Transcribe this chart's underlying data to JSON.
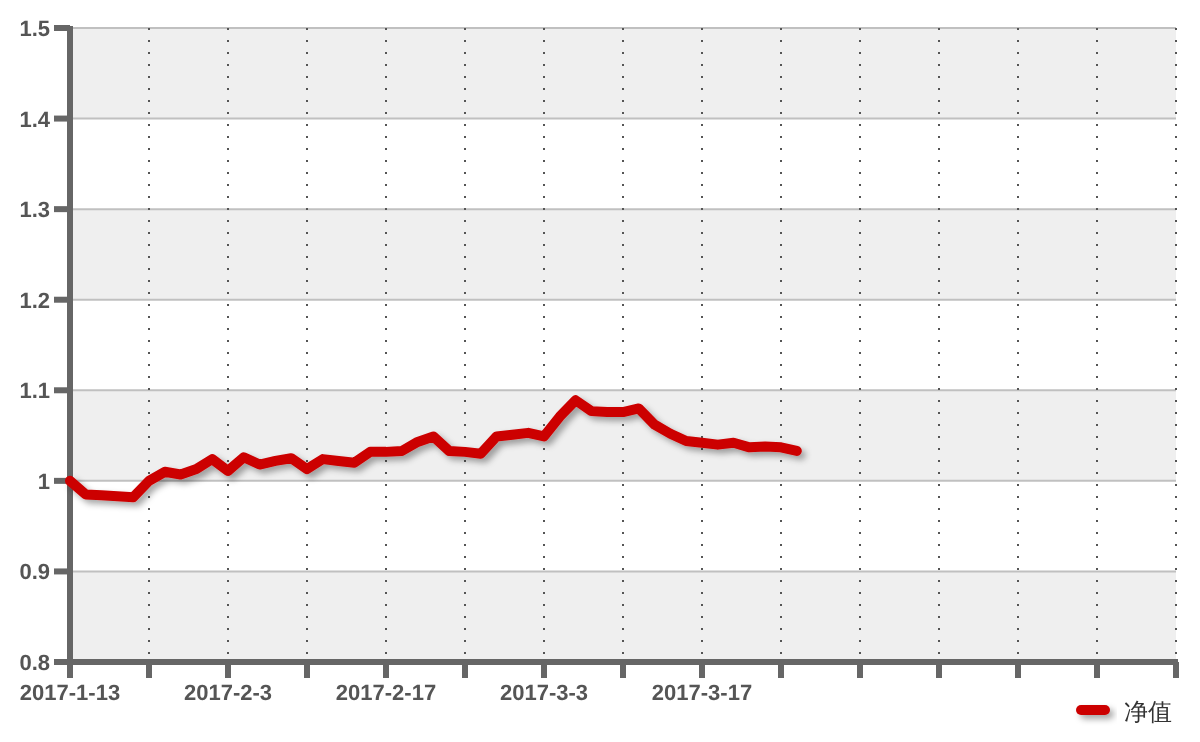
{
  "chart_data": {
    "type": "line",
    "categories": [
      "2017-1-13",
      null,
      null,
      null,
      null,
      null,
      null,
      null,
      null,
      null,
      "2017-2-3",
      null,
      null,
      null,
      null,
      null,
      null,
      null,
      null,
      null,
      "2017-2-17",
      null,
      null,
      null,
      null,
      null,
      null,
      null,
      null,
      null,
      "2017-3-3",
      null,
      null,
      null,
      null,
      null,
      null,
      null,
      null,
      null,
      "2017-3-17",
      null,
      null,
      null,
      null,
      null,
      null,
      null,
      null,
      null,
      null,
      null,
      null,
      null,
      null,
      null,
      null,
      null,
      null,
      null,
      null,
      null,
      null,
      null,
      null,
      null,
      null,
      null,
      null,
      null,
      null
    ],
    "series": [
      {
        "name": "净值",
        "color": "#cc0000",
        "values": [
          1.0,
          0.985,
          0.984,
          0.983,
          0.982,
          1.0,
          1.01,
          1.007,
          1.013,
          1.024,
          1.011,
          1.026,
          1.018,
          1.022,
          1.025,
          1.013,
          1.024,
          1.022,
          1.02,
          1.032,
          1.032,
          1.033,
          1.043,
          1.049,
          1.033,
          1.032,
          1.03,
          1.049,
          1.051,
          1.053,
          1.049,
          1.071,
          1.089,
          1.077,
          1.076,
          1.076,
          1.08,
          1.062,
          1.052,
          1.044,
          1.042,
          1.04,
          1.042,
          1.037,
          1.038,
          1.037,
          1.033,
          null,
          null,
          null,
          null,
          null,
          null,
          null,
          null,
          null,
          null,
          null,
          null,
          null,
          null,
          null,
          null,
          null,
          null,
          null,
          null,
          null,
          null,
          null,
          null
        ]
      }
    ],
    "ylim": [
      0.8,
      1.5
    ],
    "yticks": [
      0.8,
      0.9,
      1,
      1.1,
      1.2,
      1.3,
      1.4,
      1.5
    ],
    "grid": true,
    "legend": "bottom right",
    "marker": "none",
    "line_style": "solid"
  }
}
